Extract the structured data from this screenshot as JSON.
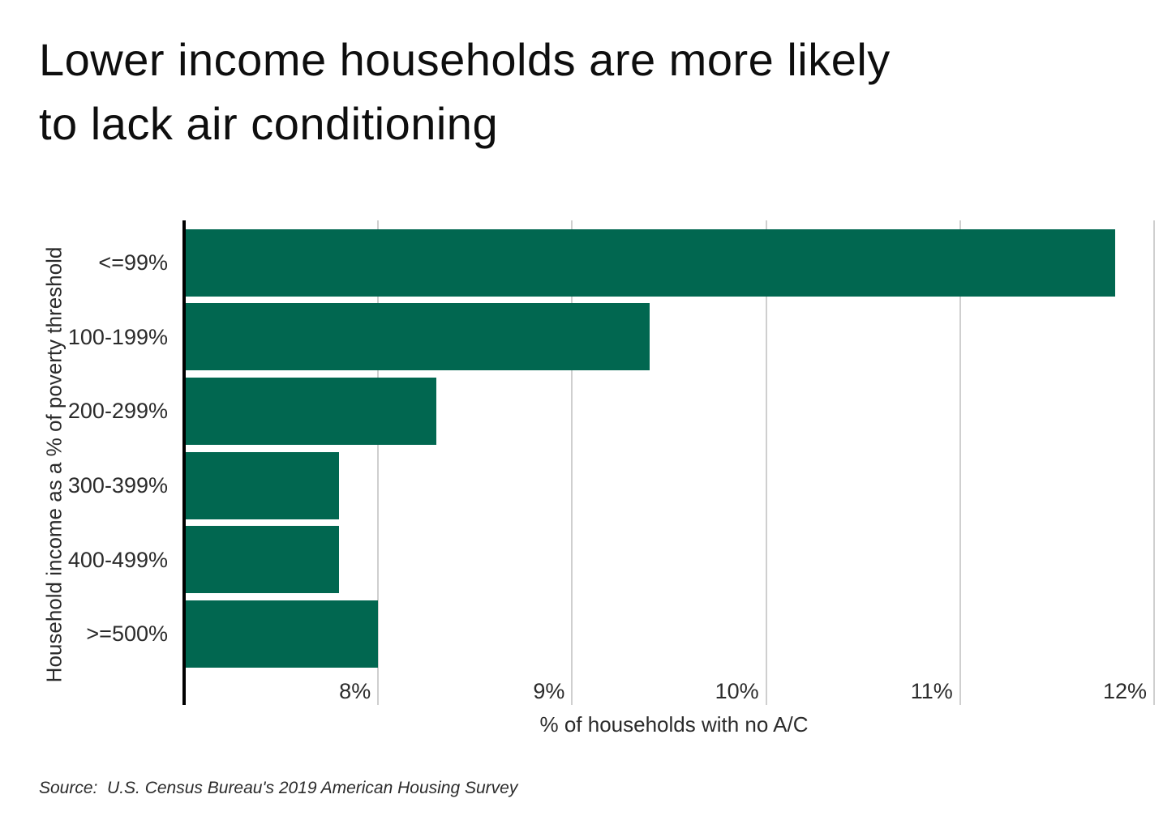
{
  "title_lines": [
    "Lower income households are more likely",
    "to lack air conditioning"
  ],
  "source": {
    "text": "Source:  U.S. Census Bureau's 2019 American Housing Survey"
  },
  "colors": {
    "bar": "#016750",
    "gridline": "#cfcfcf",
    "axis_line": "#000000",
    "text": "#2b2b2b",
    "title_text": "#0e0e0e",
    "background": "#ffffff"
  },
  "chart_data": {
    "type": "bar",
    "orientation": "horizontal",
    "title": "Lower income households are more likely to lack air conditioning",
    "categories": [
      "<=99%",
      "100-199%",
      "200-299%",
      "300-399%",
      "400-499%",
      ">=500%"
    ],
    "values": [
      11.8,
      9.4,
      8.3,
      7.8,
      7.8,
      8.0
    ],
    "xlabel": "% of households with no A/C",
    "ylabel": "Household income as a % of poverty threshold",
    "xlim": [
      7.0,
      12.05
    ],
    "xticks": [
      8,
      9,
      10,
      11,
      12
    ],
    "xtick_labels": [
      "8%",
      "9%",
      "10%",
      "11%",
      "12%"
    ],
    "grid": true,
    "legend": false,
    "unit": "percent"
  }
}
